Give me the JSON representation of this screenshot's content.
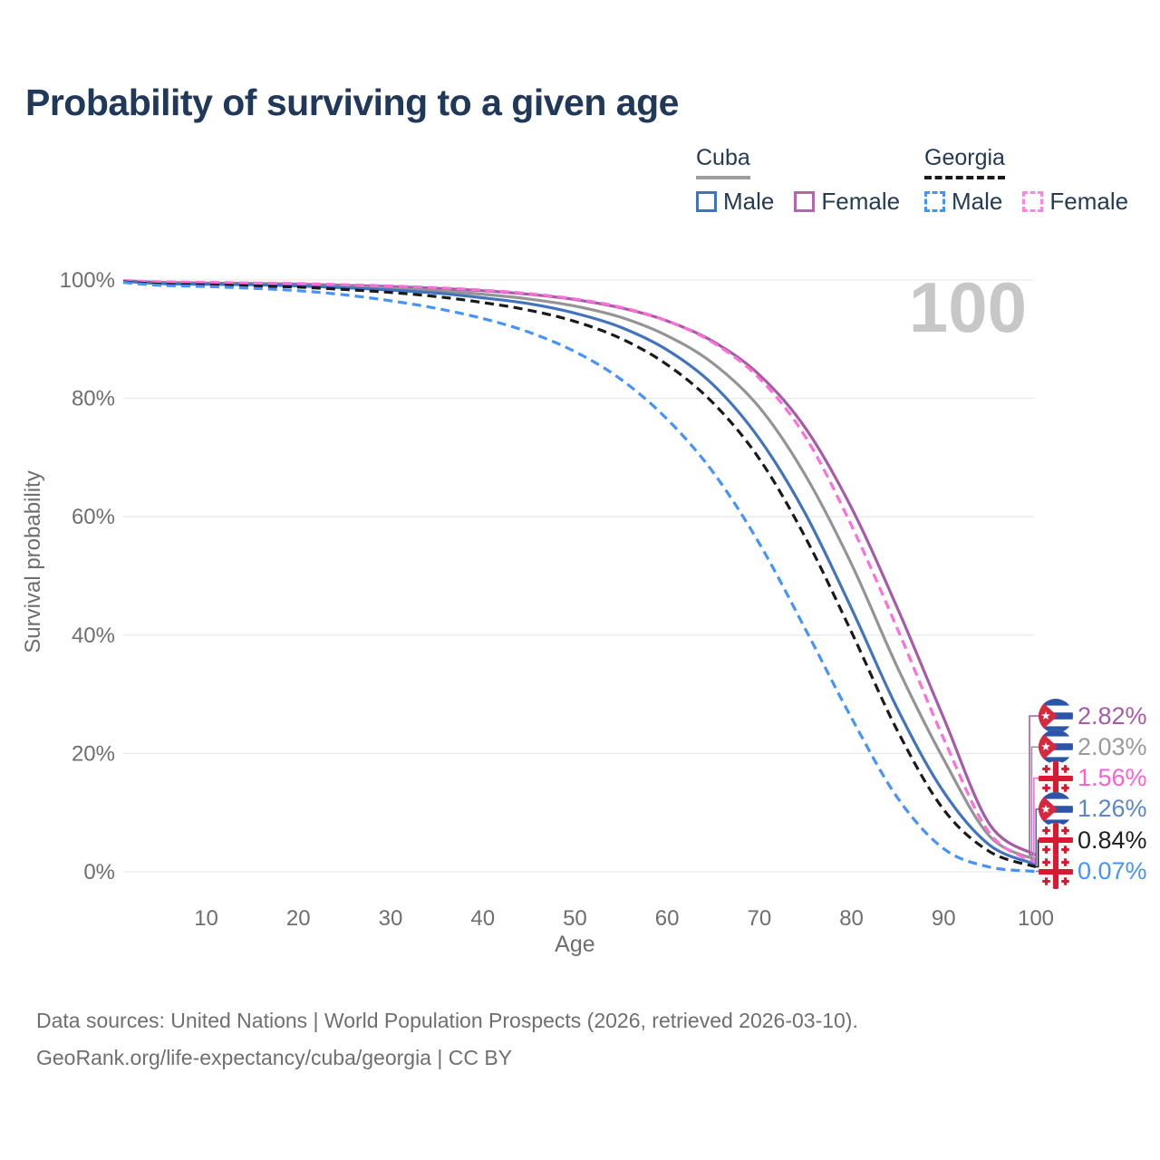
{
  "title": {
    "text": "Probability of surviving to a given age",
    "color": "#20395a"
  },
  "legend": {
    "text_color": "#243b53",
    "groups": [
      {
        "label": "Cuba",
        "line_style": "solid",
        "underline_color": "#9e9e9e",
        "items": [
          {
            "label": "Male",
            "color": "#4273bd"
          },
          {
            "label": "Female",
            "color": "#b465ae"
          }
        ]
      },
      {
        "label": "Georgia",
        "line_style": "dashed",
        "underline_color": "#1a1a1a",
        "items": [
          {
            "label": "Male",
            "color": "#4793f7"
          },
          {
            "label": "Female",
            "color": "#ff85e2"
          }
        ]
      }
    ]
  },
  "chart_data": {
    "type": "line",
    "xlabel": "Age",
    "ylabel": "Survival probability",
    "watermark": "100",
    "xlim": [
      1,
      100
    ],
    "ylim": [
      0,
      100
    ],
    "grid": true,
    "x_ticks": [
      10,
      20,
      30,
      40,
      50,
      60,
      70,
      80,
      90,
      100
    ],
    "y_ticks": [
      0,
      20,
      40,
      60,
      80,
      100
    ],
    "y_tick_suffix": "%",
    "axis_text_color": "#6e6e6e",
    "grid_color": "#e9e9e9",
    "watermark_color": "#c7c7c7",
    "x": [
      1,
      5,
      10,
      15,
      20,
      25,
      30,
      35,
      40,
      45,
      50,
      55,
      60,
      65,
      70,
      75,
      80,
      85,
      90,
      95,
      100
    ],
    "series": [
      {
        "name": "Cuba Female",
        "country": "Cuba",
        "sex": "Female",
        "flag": "cuba",
        "color": "#a65ba6",
        "dash": false,
        "end_label": "2.82%",
        "end_label_color": "#a65ba6",
        "values": [
          99.9,
          99.6,
          99.5,
          99.4,
          99.3,
          99.1,
          98.9,
          98.6,
          98.2,
          97.6,
          96.7,
          95.3,
          93.1,
          89.6,
          84.0,
          75.0,
          61.5,
          44.5,
          26.0,
          8.0,
          2.82
        ]
      },
      {
        "name": "Cuba",
        "country": "Cuba",
        "sex": "Both",
        "flag": "cuba",
        "color": "#949494",
        "dash": false,
        "end_label": "2.03%",
        "end_label_color": "#9a9a9a",
        "values": [
          99.8,
          99.5,
          99.4,
          99.3,
          99.1,
          98.9,
          98.6,
          98.2,
          97.6,
          96.8,
          95.6,
          93.7,
          90.6,
          85.9,
          78.5,
          67.0,
          52.0,
          34.5,
          19.0,
          6.0,
          2.03
        ]
      },
      {
        "name": "Georgia Female",
        "country": "Georgia",
        "sex": "Female",
        "flag": "georgia",
        "color": "#ff6fd8",
        "dash": true,
        "end_label": "1.56%",
        "end_label_color": "#ff5fd2",
        "values": [
          99.9,
          99.7,
          99.6,
          99.5,
          99.4,
          99.2,
          99.0,
          98.7,
          98.3,
          97.7,
          96.8,
          95.4,
          93.1,
          89.4,
          83.4,
          73.5,
          58.5,
          41.0,
          22.5,
          6.5,
          1.56
        ]
      },
      {
        "name": "Cuba Male",
        "country": "Cuba",
        "sex": "Male",
        "flag": "cuba",
        "color": "#4273bd",
        "dash": false,
        "end_label": "1.26%",
        "end_label_color": "#5b86c8",
        "values": [
          99.8,
          99.4,
          99.3,
          99.2,
          99.0,
          98.7,
          98.3,
          97.8,
          97.0,
          96.0,
          94.4,
          92.0,
          88.2,
          82.3,
          73.2,
          60.5,
          44.5,
          27.5,
          13.5,
          4.5,
          1.26
        ]
      },
      {
        "name": "Georgia",
        "country": "Georgia",
        "sex": "Both",
        "flag": "georgia",
        "color": "#1a1a1a",
        "dash": true,
        "end_label": "0.84%",
        "end_label_color": "#1f1f1f",
        "values": [
          99.7,
          99.3,
          99.2,
          99.0,
          98.8,
          98.4,
          97.9,
          97.2,
          96.2,
          94.9,
          93.0,
          90.1,
          85.7,
          79.2,
          69.8,
          56.5,
          40.5,
          23.8,
          10.5,
          3.4,
          0.84
        ]
      },
      {
        "name": "Georgia Male",
        "country": "Georgia",
        "sex": "Male",
        "flag": "georgia",
        "color": "#4793f7",
        "dash": true,
        "end_label": "0.07%",
        "end_label_color": "#4793f7",
        "values": [
          99.6,
          99.1,
          98.9,
          98.6,
          98.2,
          97.5,
          96.5,
          95.2,
          93.5,
          91.2,
          87.9,
          83.2,
          76.5,
          67.5,
          55.5,
          41.0,
          26.0,
          12.5,
          3.9,
          0.8,
          0.07
        ]
      }
    ]
  },
  "footer": {
    "color": "#6f6f6f",
    "lines": [
      "Data sources: United Nations | World Population Prospects (2026, retrieved 2026-03-10).",
      "GeoRank.org/life-expectancy/cuba/georgia | CC BY"
    ]
  }
}
